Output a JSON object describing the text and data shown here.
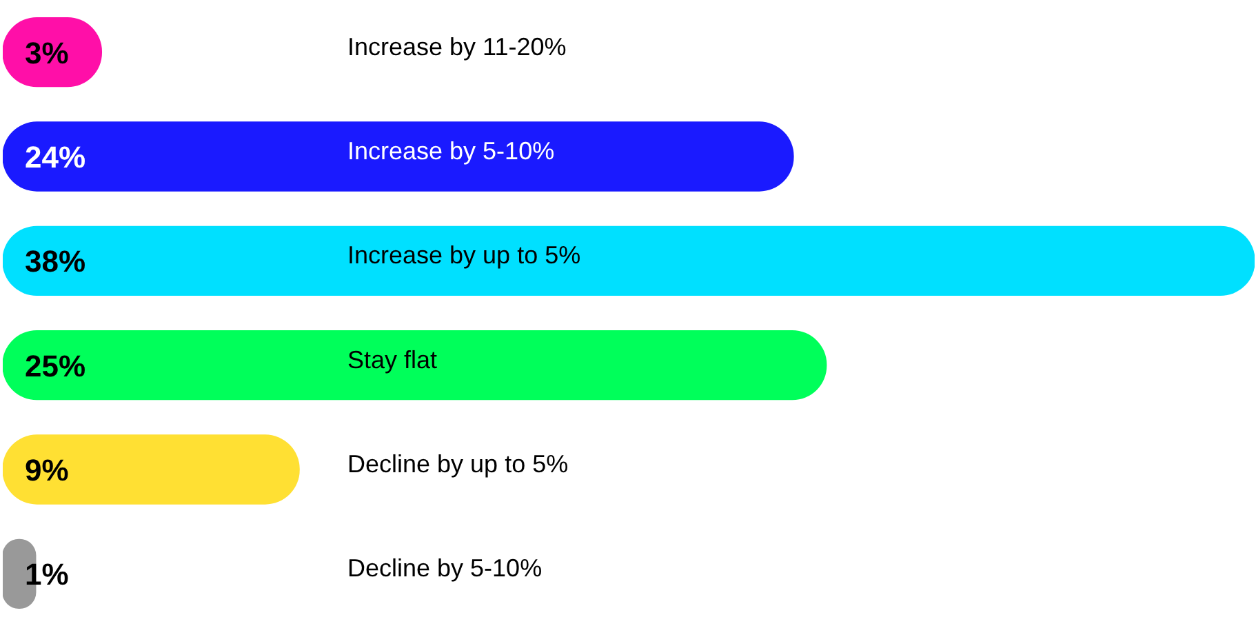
{
  "chart_data": {
    "type": "bar",
    "orientation": "horizontal",
    "categories": [
      "Increase by 11-20%",
      "Increase by 5-10%",
      "Increase by up to 5%",
      "Stay flat",
      "Decline by up to 5%",
      "Decline by 5-10%"
    ],
    "values": [
      3,
      24,
      38,
      25,
      9,
      1
    ],
    "colors": [
      "#ff0fa8",
      "#1a1aff",
      "#00e0ff",
      "#00ff5a",
      "#ffe033",
      "#999999"
    ],
    "value_labels": [
      "3%",
      "24%",
      "38%",
      "25%",
      "9%",
      "1%"
    ],
    "xlim": [
      0,
      38
    ]
  }
}
